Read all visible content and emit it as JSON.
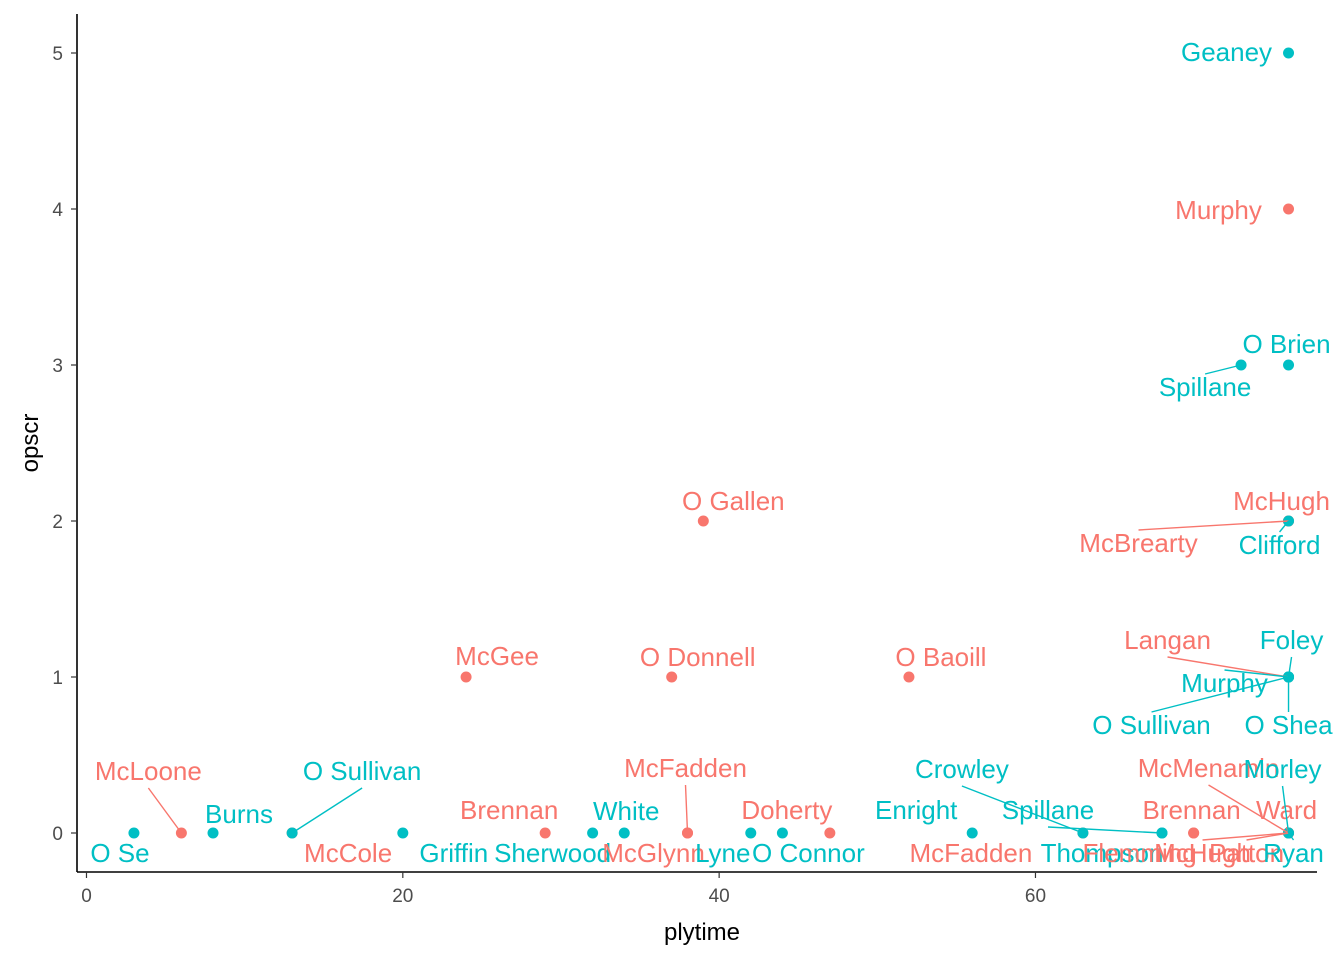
{
  "chart_data": {
    "type": "scatter",
    "title": "",
    "xlabel": "plytime",
    "ylabel": "opscr",
    "xlim": [
      -0.6,
      77.8
    ],
    "ylim": [
      -0.25,
      5.25
    ],
    "x_ticks": [
      0,
      20,
      40,
      60
    ],
    "y_ticks": [
      0,
      1,
      2,
      3,
      4,
      5
    ],
    "x_tick_labels": [
      "0",
      "20",
      "40",
      "60"
    ],
    "y_tick_labels": [
      "0",
      "1",
      "2",
      "3",
      "4",
      "5"
    ],
    "grid": false,
    "legend": "none",
    "colors": {
      "red": "#F8766D",
      "teal": "#00BFC4"
    },
    "points": [
      {
        "x": 3,
        "y": 0,
        "color": "teal",
        "label": "O Se"
      },
      {
        "x": 6,
        "y": 0,
        "color": "red",
        "label": "McLoone"
      },
      {
        "x": 8,
        "y": 0,
        "color": "teal",
        "label": "Burns"
      },
      {
        "x": 13,
        "y": 0,
        "color": "red",
        "label": "McCole"
      },
      {
        "x": 13,
        "y": 0,
        "color": "teal",
        "label": "O Sullivan"
      },
      {
        "x": 20,
        "y": 0,
        "color": "teal",
        "label": "Griffin"
      },
      {
        "x": 24,
        "y": 1,
        "color": "red",
        "label": "McGee"
      },
      {
        "x": 29,
        "y": 0,
        "color": "red",
        "label": "Brennan"
      },
      {
        "x": 32,
        "y": 0,
        "color": "teal",
        "label": "Sherwood"
      },
      {
        "x": 34,
        "y": 0,
        "color": "teal",
        "label": "White"
      },
      {
        "x": 37,
        "y": 1,
        "color": "red",
        "label": "O Donnell"
      },
      {
        "x": 38,
        "y": 0,
        "color": "red",
        "label": "McFadden"
      },
      {
        "x": 38,
        "y": 0,
        "color": "red",
        "label": "McGlynn"
      },
      {
        "x": 39,
        "y": 2,
        "color": "red",
        "label": "O Gallen"
      },
      {
        "x": 42,
        "y": 0,
        "color": "teal",
        "label": "Lyne"
      },
      {
        "x": 44,
        "y": 0,
        "color": "teal",
        "label": "O Connor"
      },
      {
        "x": 47,
        "y": 0,
        "color": "red",
        "label": "Doherty"
      },
      {
        "x": 52,
        "y": 1,
        "color": "red",
        "label": "O Baoill"
      },
      {
        "x": 56,
        "y": 0,
        "color": "teal",
        "label": "Enright"
      },
      {
        "x": 63,
        "y": 0,
        "color": "red",
        "label": "McFadden"
      },
      {
        "x": 63,
        "y": 0,
        "color": "teal",
        "label": "Crowley"
      },
      {
        "x": 68,
        "y": 0,
        "color": "teal",
        "label": "Spillane"
      },
      {
        "x": 68,
        "y": 0,
        "color": "teal",
        "label": "Thompson"
      },
      {
        "x": 70,
        "y": 0,
        "color": "red",
        "label": "Brennan"
      },
      {
        "x": 70,
        "y": 0,
        "color": "red",
        "label": "Flemming"
      },
      {
        "x": 73,
        "y": 3,
        "color": "teal",
        "label": "Spillane"
      },
      {
        "x": 76,
        "y": 0,
        "color": "red",
        "label": "McMenamin"
      },
      {
        "x": 76,
        "y": 0,
        "color": "red",
        "label": "McHugh"
      },
      {
        "x": 76,
        "y": 0,
        "color": "red",
        "label": "Patton"
      },
      {
        "x": 76,
        "y": 0,
        "color": "red",
        "label": "Ward"
      },
      {
        "x": 76,
        "y": 0,
        "color": "teal",
        "label": "Morley"
      },
      {
        "x": 76,
        "y": 0,
        "color": "teal",
        "label": "Ryan"
      },
      {
        "x": 76,
        "y": 1,
        "color": "red",
        "label": "Langan"
      },
      {
        "x": 76,
        "y": 1,
        "color": "teal",
        "label": "Foley"
      },
      {
        "x": 76,
        "y": 1,
        "color": "teal",
        "label": "Murphy"
      },
      {
        "x": 76,
        "y": 1,
        "color": "teal",
        "label": "O Sullivan"
      },
      {
        "x": 76,
        "y": 1,
        "color": "teal",
        "label": "O Shea"
      },
      {
        "x": 76,
        "y": 2,
        "color": "red",
        "label": "McHugh"
      },
      {
        "x": 76,
        "y": 2,
        "color": "red",
        "label": "McBrearty"
      },
      {
        "x": 76,
        "y": 2,
        "color": "teal",
        "label": "Clifford"
      },
      {
        "x": 76,
        "y": 3,
        "color": "teal",
        "label": "O Brien"
      },
      {
        "x": 76,
        "y": 4,
        "color": "red",
        "label": "Murphy"
      },
      {
        "x": 76,
        "y": 5,
        "color": "teal",
        "label": "Geaney"
      }
    ]
  }
}
